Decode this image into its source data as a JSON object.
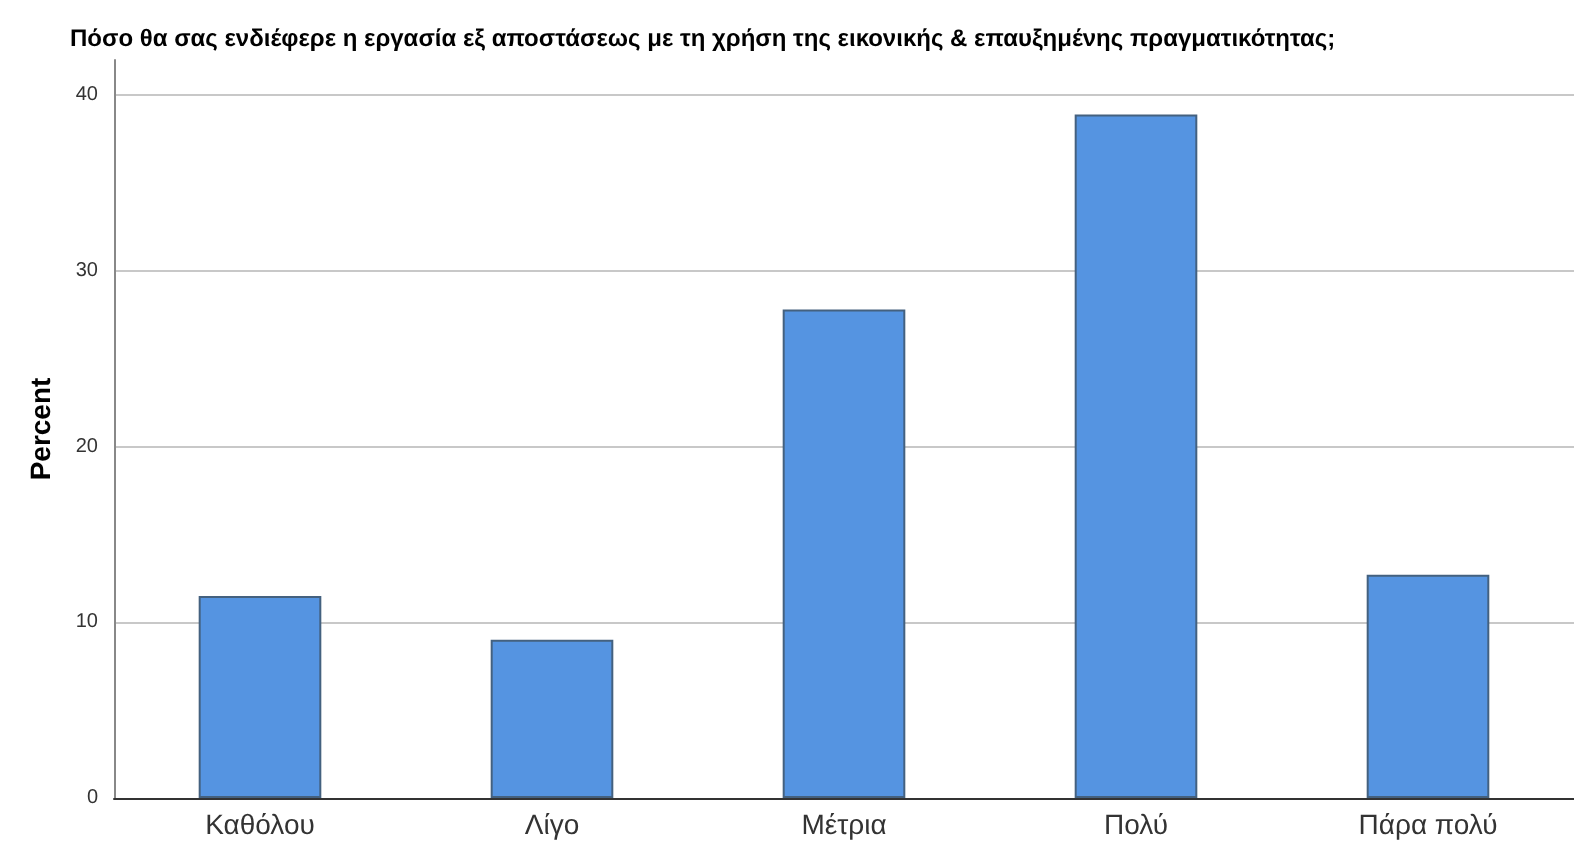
{
  "chart_data": {
    "type": "bar",
    "title": "Πόσο θα σας ενδιέφερε η εργασία εξ αποστάσεως με τη χρήση της εικονικής & επαυξημένης πραγματικότητας;",
    "ylabel": "Percent",
    "categories": [
      "Καθόλου",
      "Λίγο",
      "Μέτρια",
      "Πολύ",
      "Πάρα πολύ"
    ],
    "values": [
      11.5,
      9.0,
      27.8,
      38.9,
      12.7
    ],
    "color": "#5594e1",
    "ylim": [
      0,
      42
    ],
    "yticks": [
      0,
      10,
      20,
      30,
      40
    ],
    "grid": "y"
  }
}
